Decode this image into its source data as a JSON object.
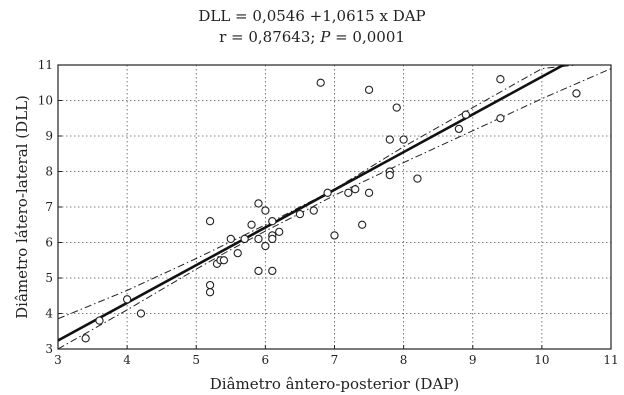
{
  "chart_data": {
    "type": "scatter",
    "title": "DLL = 0,0546 +1,0615 x DAP",
    "subtitle_r": "r = 0,87643;",
    "subtitle_p_symbol": "P",
    "subtitle_p_value": "= 0,0001",
    "xlabel": "Diâmetro ântero-posterior (DAP)",
    "ylabel": "Diâmetro látero-lateral (DLL)",
    "xlim": [
      3,
      11
    ],
    "ylim": [
      3,
      11
    ],
    "xticks": [
      "3",
      "4",
      "5",
      "6",
      "7",
      "8",
      "9",
      "10",
      "11"
    ],
    "yticks": [
      "3",
      "4",
      "5",
      "6",
      "7",
      "8",
      "9",
      "10",
      "11"
    ],
    "grid": true,
    "grid_style": "dotted",
    "regression": {
      "intercept": 0.0546,
      "slope": 1.0615
    },
    "confidence_band": {
      "lower": [
        [
          3,
          3.0
        ],
        [
          4,
          4.1
        ],
        [
          5,
          5.25
        ],
        [
          5.5,
          5.8
        ],
        [
          6,
          6.32
        ],
        [
          6.5,
          6.82
        ],
        [
          7,
          7.33
        ],
        [
          8,
          8.25
        ],
        [
          9,
          9.15
        ],
        [
          10,
          10.05
        ],
        [
          11,
          10.9
        ]
      ],
      "upper": [
        [
          3,
          3.85
        ],
        [
          4,
          4.65
        ],
        [
          5,
          5.55
        ],
        [
          6,
          6.5
        ],
        [
          6.5,
          7.0
        ],
        [
          7,
          7.5
        ],
        [
          8,
          8.7
        ],
        [
          9,
          9.8
        ],
        [
          10,
          10.9
        ],
        [
          10.5,
          11.0
        ]
      ]
    },
    "points": [
      [
        3.4,
        3.3
      ],
      [
        3.6,
        3.8
      ],
      [
        4.0,
        4.4
      ],
      [
        4.2,
        4.0
      ],
      [
        5.2,
        6.6
      ],
      [
        5.2,
        4.8
      ],
      [
        5.2,
        4.6
      ],
      [
        5.3,
        5.4
      ],
      [
        5.35,
        5.5
      ],
      [
        5.4,
        5.5
      ],
      [
        5.5,
        6.1
      ],
      [
        5.6,
        5.7
      ],
      [
        5.7,
        6.1
      ],
      [
        5.8,
        6.5
      ],
      [
        5.9,
        6.1
      ],
      [
        5.9,
        7.1
      ],
      [
        5.9,
        5.2
      ],
      [
        6.0,
        6.9
      ],
      [
        6.0,
        5.9
      ],
      [
        6.1,
        6.6
      ],
      [
        6.1,
        6.2
      ],
      [
        6.1,
        6.1
      ],
      [
        6.1,
        5.2
      ],
      [
        6.2,
        6.3
      ],
      [
        6.5,
        6.8
      ],
      [
        6.7,
        6.9
      ],
      [
        6.8,
        10.5
      ],
      [
        6.9,
        7.4
      ],
      [
        7.0,
        6.2
      ],
      [
        7.2,
        7.4
      ],
      [
        7.3,
        7.5
      ],
      [
        7.4,
        6.5
      ],
      [
        7.5,
        10.3
      ],
      [
        7.5,
        7.4
      ],
      [
        7.8,
        8.9
      ],
      [
        7.8,
        8.0
      ],
      [
        7.8,
        7.9
      ],
      [
        7.9,
        9.8
      ],
      [
        8.0,
        8.9
      ],
      [
        8.2,
        7.8
      ],
      [
        8.8,
        9.2
      ],
      [
        8.9,
        9.6
      ],
      [
        9.4,
        10.6
      ],
      [
        9.4,
        9.5
      ],
      [
        10.5,
        10.2
      ]
    ]
  }
}
